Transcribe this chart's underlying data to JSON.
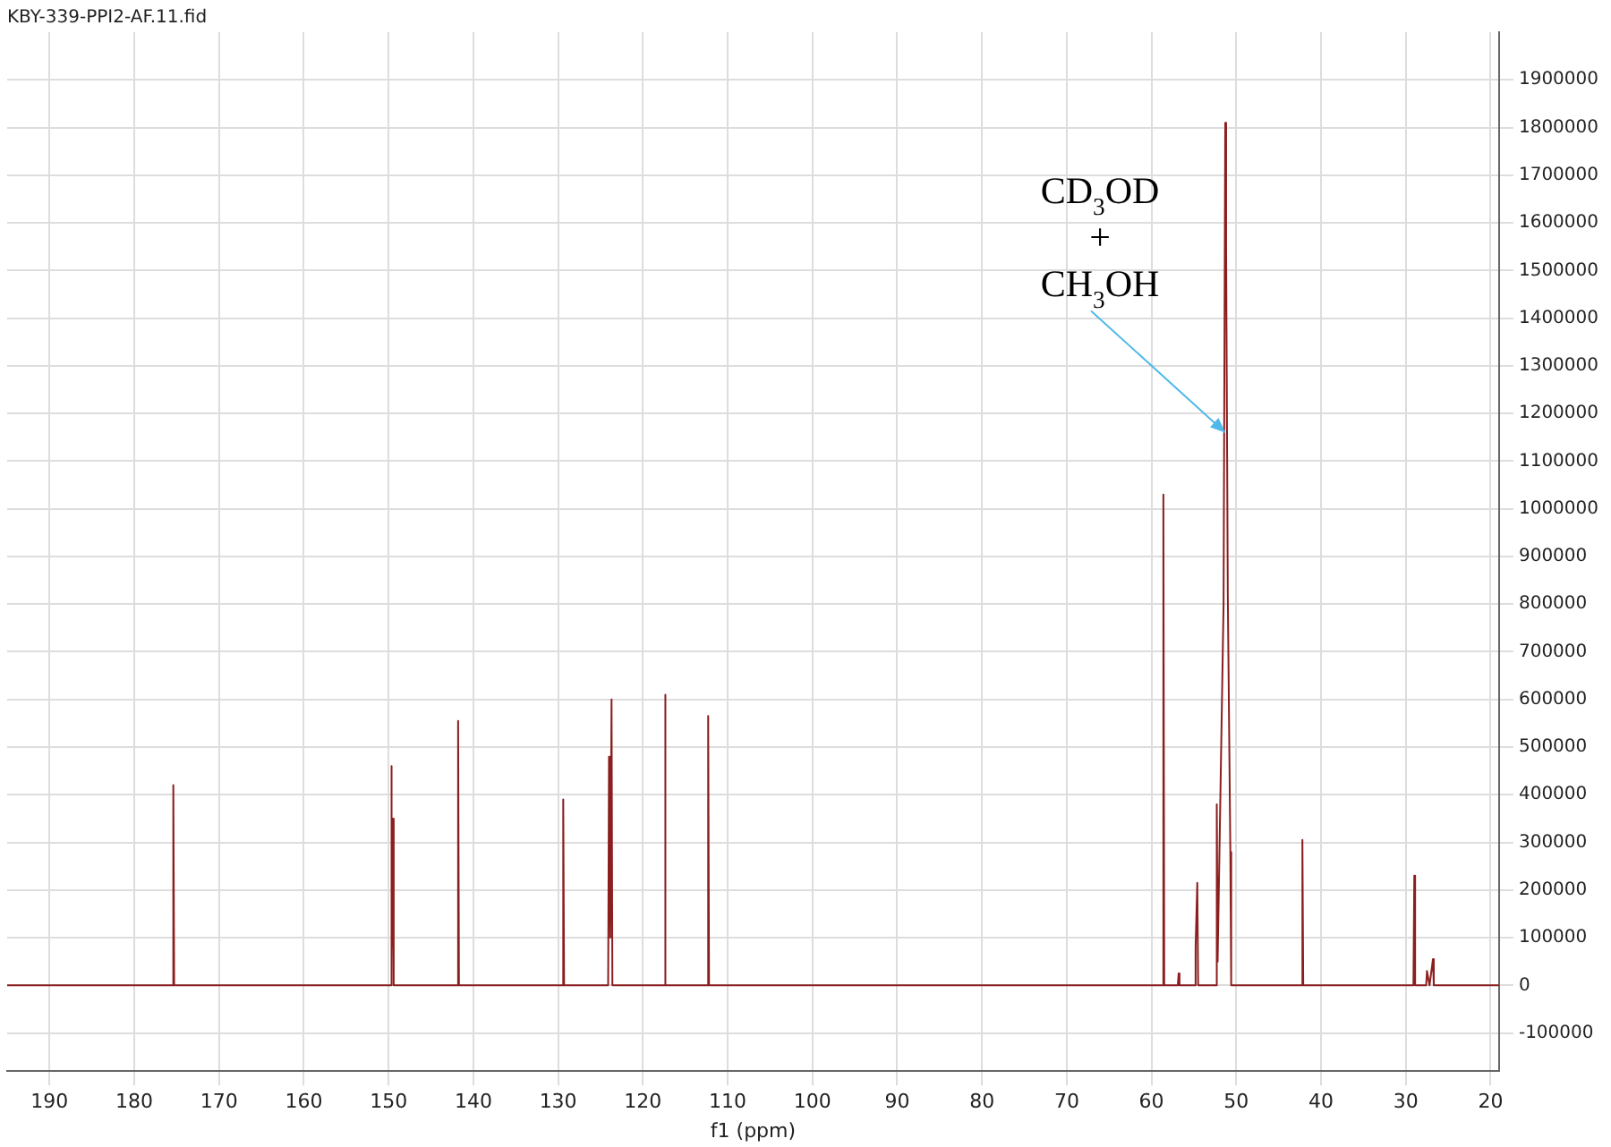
{
  "chart_data": {
    "type": "line",
    "title": "KBY-339-PPI2-AF.11.fid",
    "xlabel": "f1 (ppm)",
    "x": [
      195,
      175.5,
      175.4,
      175.3,
      149.8,
      149.7,
      149.6,
      149.5,
      149.4,
      141.9,
      141.8,
      141.7,
      129.5,
      129.4,
      129.3,
      124.1,
      124.0,
      123.85,
      123.7,
      123.6,
      117.5,
      117.4,
      117.3,
      112.4,
      112.3,
      112.2,
      58.7,
      58.6,
      58.5,
      56.9,
      56.8,
      56.7,
      54.9,
      54.8,
      54.6,
      54.5,
      52.4,
      52.3,
      52.2,
      51.5,
      51.3,
      51.2,
      51.0,
      50.7,
      50.6,
      42.3,
      42.2,
      42.1,
      29.1,
      29.0,
      28.9,
      27.6,
      27.5,
      27.2,
      26.8,
      26.7,
      19
    ],
    "series": [
      {
        "color": "#8b1e1e",
        "values": [
          0,
          0,
          420000,
          0,
          0,
          460000,
          60000,
          350000,
          0,
          0,
          555000,
          0,
          0,
          390000,
          0,
          0,
          480000,
          100000,
          600000,
          0,
          0,
          610000,
          0,
          0,
          565000,
          0,
          0,
          1030000,
          0,
          0,
          25000,
          0,
          0,
          80000,
          215000,
          0,
          0,
          380000,
          50000,
          800000,
          1810000,
          1550000,
          820000,
          280000,
          0,
          0,
          305000,
          0,
          0,
          230000,
          0,
          0,
          30000,
          0,
          55000,
          0,
          0
        ]
      }
    ],
    "xlim": [
      195,
      19
    ],
    "xticks": [
      190,
      180,
      170,
      160,
      150,
      140,
      130,
      120,
      110,
      100,
      90,
      80,
      70,
      60,
      50,
      40,
      30,
      20
    ],
    "ylim": [
      -180000,
      2000000
    ],
    "yticks": [
      -100000,
      0,
      100000,
      200000,
      300000,
      400000,
      500000,
      600000,
      700000,
      800000,
      900000,
      1000000,
      1100000,
      1200000,
      1300000,
      1400000,
      1500000,
      1600000,
      1700000,
      1800000,
      1900000
    ],
    "annotations": [
      {
        "text": "CD$_{3}$OD\n+\nCH$_{3}$OH",
        "x": 51.3,
        "y": 1160000
      }
    ],
    "grid": true,
    "legend": false,
    "marker": "none",
    "line_style": "solid"
  }
}
